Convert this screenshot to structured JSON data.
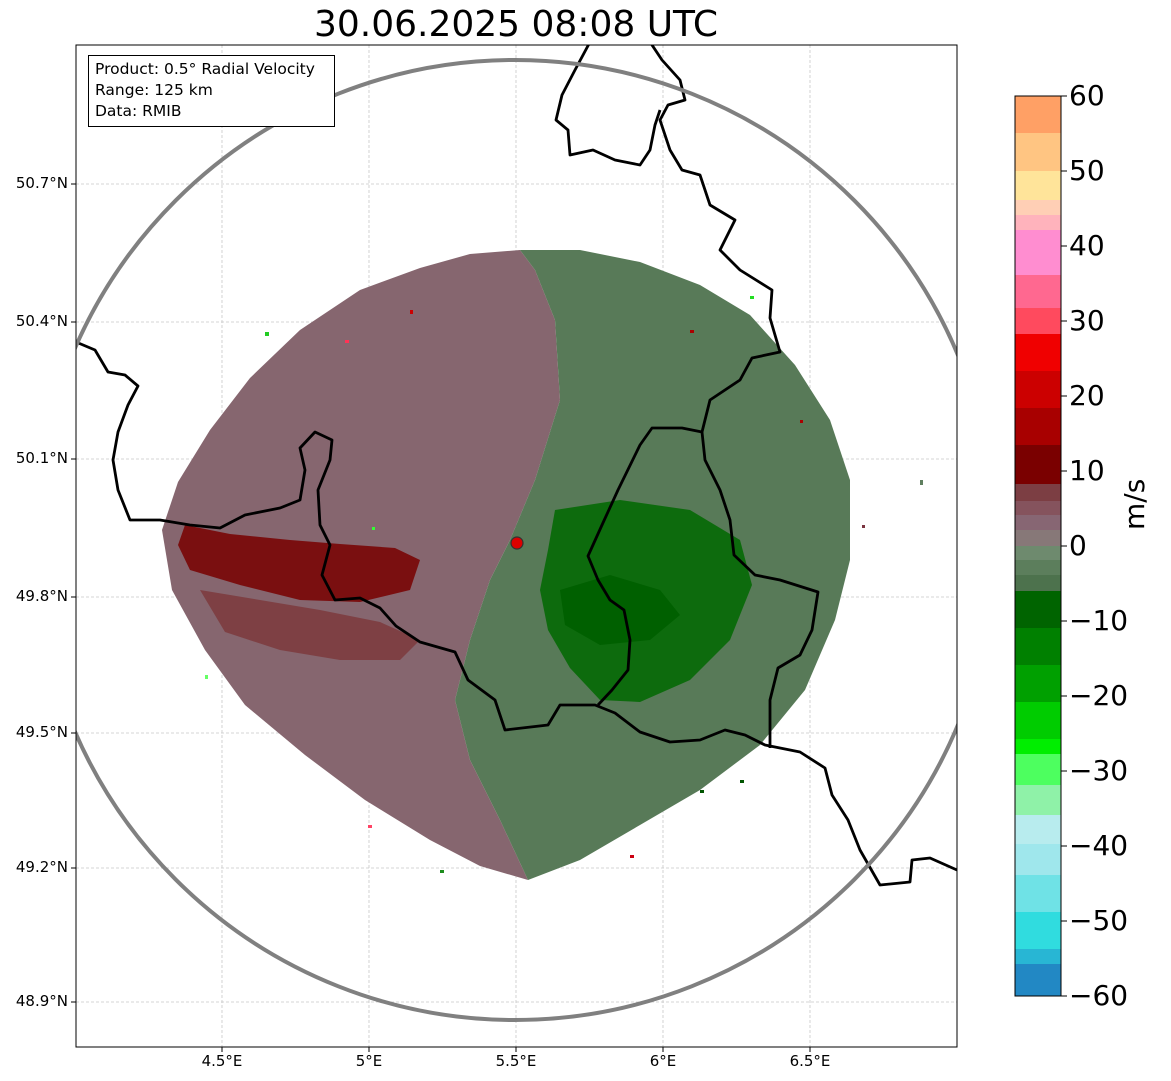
{
  "title": "30.06.2025 08:08 UTC",
  "info": {
    "product": "Product: 0.5° Radial Velocity",
    "range": "Range: 125 km",
    "source": "Data: RMIB"
  },
  "latitude_labels": [
    "50.7°N",
    "50.4°N",
    "50.1°N",
    "49.8°N",
    "49.5°N",
    "49.2°N",
    "48.9°N"
  ],
  "longitude_labels": [
    "4.5°E",
    "5°E",
    "5.5°E",
    "6°E",
    "6.5°E"
  ],
  "colorbar": {
    "unit": "m/s",
    "min": -60,
    "max": 60,
    "ticks": [
      "60",
      "50",
      "40",
      "30",
      "20",
      "10",
      "0",
      "−10",
      "−20",
      "−30",
      "−40",
      "−50",
      "−60"
    ]
  },
  "map_extent": {
    "lon": [
      4.0,
      7.0
    ],
    "lat": [
      48.8,
      50.99
    ]
  },
  "radar_site": {
    "lon": 5.505,
    "lat": 49.914,
    "range_km": 125
  },
  "colors": {
    "inbound_strong": "#006400",
    "inbound": "#4f7d50",
    "outbound": "#84646e",
    "outbound_strong": "#7a0000",
    "border": "#000000",
    "range_ring": "#808080",
    "radar_marker": "#dd0000"
  }
}
